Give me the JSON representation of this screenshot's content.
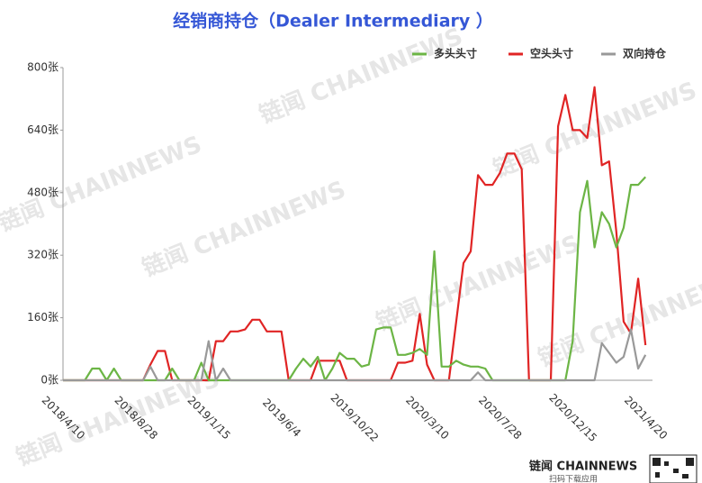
{
  "chart_data": {
    "type": "line",
    "title": "经销商持仓（Dealer Intermediary ）",
    "watermark": "链闻 CHAINNEWS",
    "footer": {
      "brand": "链闻 CHAINNEWS",
      "caption": "扫码下载应用"
    },
    "categories": [
      "2018/4/10",
      null,
      null,
      null,
      null,
      null,
      null,
      null,
      null,
      null,
      "2018/8/28",
      null,
      null,
      null,
      null,
      null,
      null,
      null,
      null,
      null,
      "2019/1/15",
      null,
      null,
      null,
      null,
      null,
      null,
      null,
      null,
      null,
      "2019/6/4",
      null,
      null,
      null,
      null,
      null,
      null,
      null,
      null,
      null,
      "2019/10/22",
      null,
      null,
      null,
      null,
      null,
      null,
      null,
      null,
      null,
      "2020/3/10",
      null,
      null,
      null,
      null,
      null,
      null,
      null,
      null,
      null,
      "2020/7/28",
      null,
      null,
      null,
      null,
      null,
      null,
      null,
      null,
      null,
      "2020/12/15",
      null,
      null,
      null,
      null,
      null,
      null,
      null,
      null,
      null,
      "2021/4/20"
    ],
    "series": [
      {
        "name": "多头头寸",
        "color": "#6cb545",
        "values": [
          0,
          0,
          0,
          0,
          30,
          30,
          0,
          30,
          0,
          0,
          0,
          0,
          0,
          0,
          0,
          30,
          0,
          0,
          0,
          45,
          0,
          0,
          0,
          0,
          0,
          0,
          0,
          0,
          0,
          0,
          0,
          0,
          30,
          55,
          35,
          60,
          0,
          30,
          70,
          55,
          55,
          35,
          40,
          130,
          135,
          135,
          65,
          65,
          70,
          80,
          65,
          330,
          35,
          35,
          50,
          40,
          35,
          35,
          30,
          0,
          0,
          0,
          0,
          0,
          0,
          0,
          0,
          0,
          0,
          0,
          100,
          430,
          510,
          340,
          430,
          400,
          340,
          390,
          500,
          500,
          520
        ]
      },
      {
        "name": "空头头寸",
        "color": "#e02424",
        "values": [
          0,
          0,
          0,
          0,
          0,
          0,
          0,
          0,
          0,
          0,
          0,
          0,
          40,
          75,
          75,
          0,
          0,
          0,
          0,
          0,
          0,
          100,
          100,
          125,
          125,
          130,
          155,
          155,
          125,
          125,
          125,
          0,
          0,
          0,
          0,
          50,
          50,
          50,
          50,
          0,
          0,
          0,
          0,
          0,
          0,
          0,
          45,
          45,
          50,
          170,
          40,
          0,
          0,
          0,
          150,
          300,
          330,
          525,
          500,
          500,
          530,
          580,
          580,
          540,
          0,
          0,
          0,
          0,
          650,
          730,
          640,
          640,
          620,
          750,
          550,
          560,
          380,
          150,
          120,
          260,
          90
        ]
      },
      {
        "name": "双向持仓",
        "color": "#999999",
        "values": [
          0,
          0,
          0,
          0,
          0,
          0,
          0,
          0,
          0,
          0,
          0,
          0,
          35,
          0,
          0,
          0,
          0,
          0,
          0,
          0,
          100,
          0,
          30,
          0,
          0,
          0,
          0,
          0,
          0,
          0,
          0,
          0,
          0,
          0,
          0,
          0,
          0,
          0,
          0,
          0,
          0,
          0,
          0,
          0,
          0,
          0,
          0,
          0,
          0,
          0,
          0,
          0,
          0,
          0,
          0,
          0,
          0,
          20,
          0,
          0,
          0,
          0,
          0,
          0,
          0,
          0,
          0,
          0,
          0,
          0,
          0,
          0,
          0,
          0,
          95,
          70,
          45,
          60,
          130,
          30,
          65
        ]
      }
    ],
    "ylim": [
      0,
      800
    ],
    "yticks": [
      {
        "value": 0,
        "label": "0张"
      },
      {
        "value": 160,
        "label": "160张"
      },
      {
        "value": 320,
        "label": "320张"
      },
      {
        "value": 480,
        "label": "480张"
      },
      {
        "value": 640,
        "label": "640张"
      },
      {
        "value": 800,
        "label": "800张"
      }
    ],
    "grid": false
  }
}
